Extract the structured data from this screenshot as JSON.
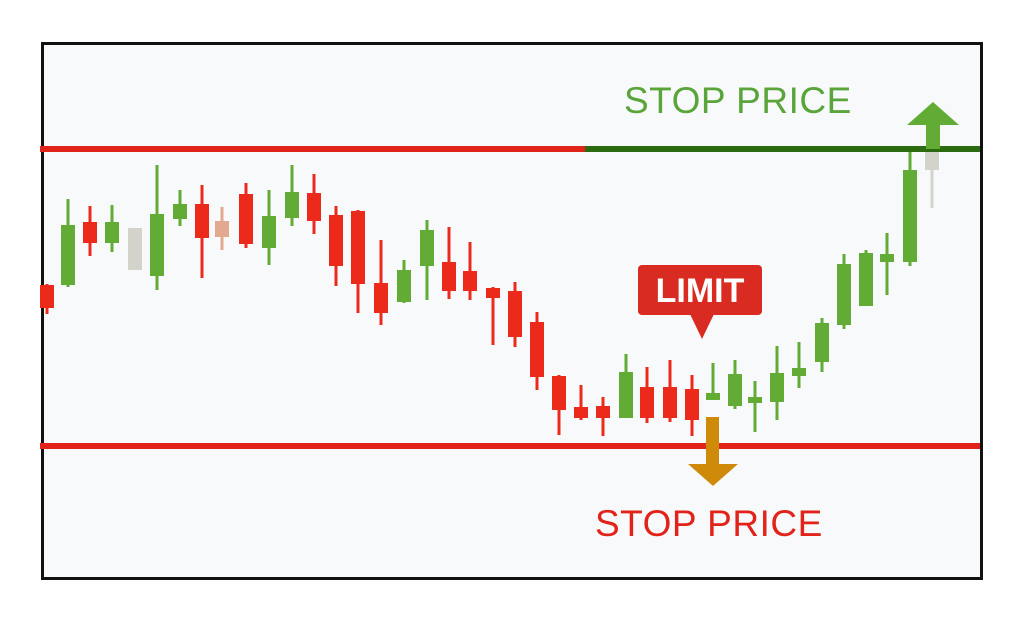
{
  "labels": {
    "stop_price_top": "STOP PRICE",
    "stop_price_bottom": "STOP PRICE",
    "limit": "LIMIT"
  },
  "colors": {
    "bullish": "#62ac35",
    "bearish": "#ec2a1c",
    "neutral": "#d3d3cb",
    "stop_top_label": "#5aa53a",
    "stop_bottom_label": "#e2231a",
    "stop_line_red": "#e2231a",
    "stop_line_green": "#2c6a10",
    "limit_badge": "#d92b22",
    "arrow_up": "#62ac35",
    "arrow_down": "#d08a0a"
  },
  "icons": {
    "up": "arrow-up-icon",
    "down": "arrow-down-icon"
  }
}
